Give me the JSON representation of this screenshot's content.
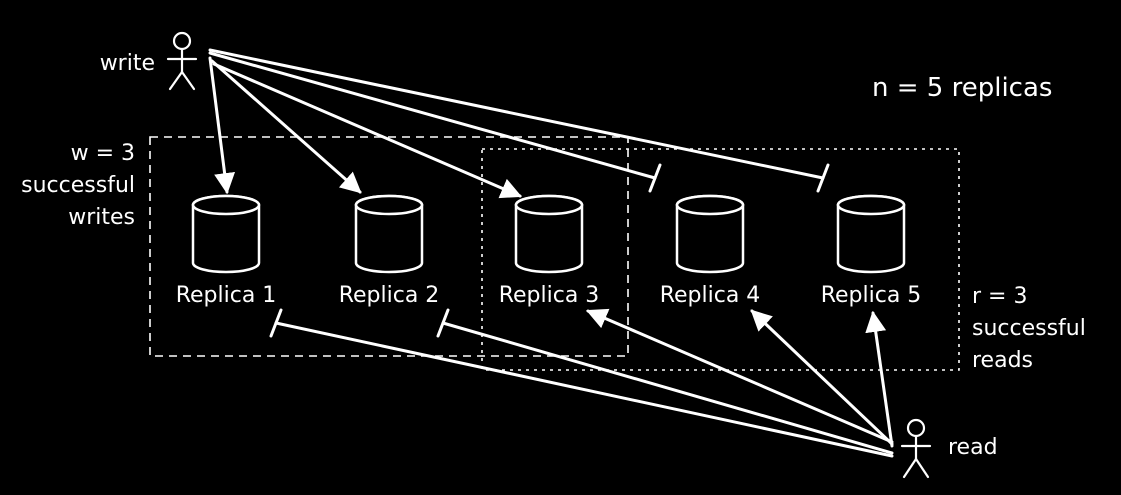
{
  "colors": {
    "background": "#000000",
    "foreground": "#ffffff"
  },
  "actors": {
    "writer_label": "write",
    "reader_label": "read"
  },
  "summary": {
    "replica_count_label": "n = 5 replicas"
  },
  "write_quorum": {
    "lines": [
      "w = 3",
      "successful",
      "writes"
    ]
  },
  "read_quorum": {
    "lines": [
      "r = 3",
      "successful",
      "reads"
    ]
  },
  "replicas": [
    {
      "label": "Replica 1",
      "write_ok": true,
      "read_ok": false
    },
    {
      "label": "Replica 2",
      "write_ok": true,
      "read_ok": false
    },
    {
      "label": "Replica 3",
      "write_ok": true,
      "read_ok": true
    },
    {
      "label": "Replica 4",
      "write_ok": false,
      "read_ok": true
    },
    {
      "label": "Replica 5",
      "write_ok": false,
      "read_ok": true
    }
  ]
}
